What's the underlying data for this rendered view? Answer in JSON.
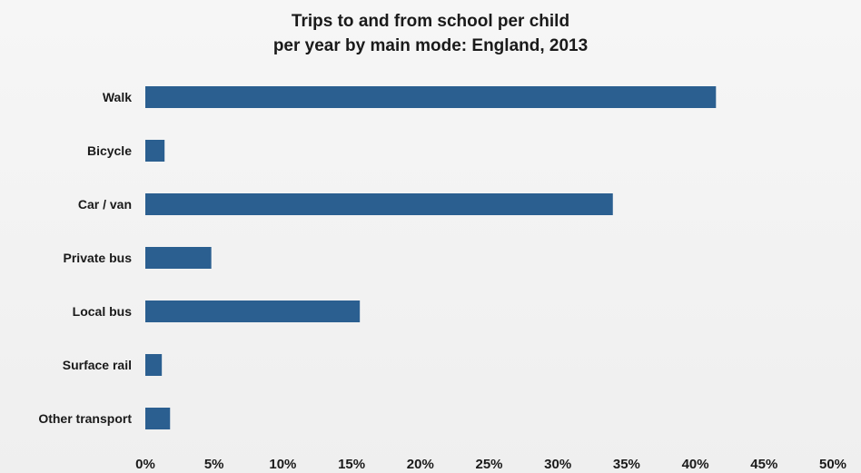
{
  "chart_data": {
    "type": "bar",
    "orientation": "horizontal",
    "title_line1": "Trips to and from school per child",
    "title_line2": "per year by main mode: England, 2013",
    "xlabel": "",
    "ylabel": "",
    "categories": [
      "Walk",
      "Bicycle",
      "Car / van",
      "Private bus",
      "Local bus",
      "Surface rail",
      "Other transport"
    ],
    "values": [
      41.5,
      1.4,
      34.0,
      4.8,
      15.6,
      1.2,
      1.8
    ],
    "xlim": [
      0,
      50
    ],
    "x_ticks": [
      "0%",
      "5%",
      "10%",
      "15%",
      "20%",
      "25%",
      "30%",
      "35%",
      "40%",
      "45%",
      "50%"
    ],
    "x_tick_values": [
      0,
      5,
      10,
      15,
      20,
      25,
      30,
      35,
      40,
      45,
      50
    ],
    "grid": false,
    "legend": "none",
    "bar_color": "#2b5f90"
  }
}
